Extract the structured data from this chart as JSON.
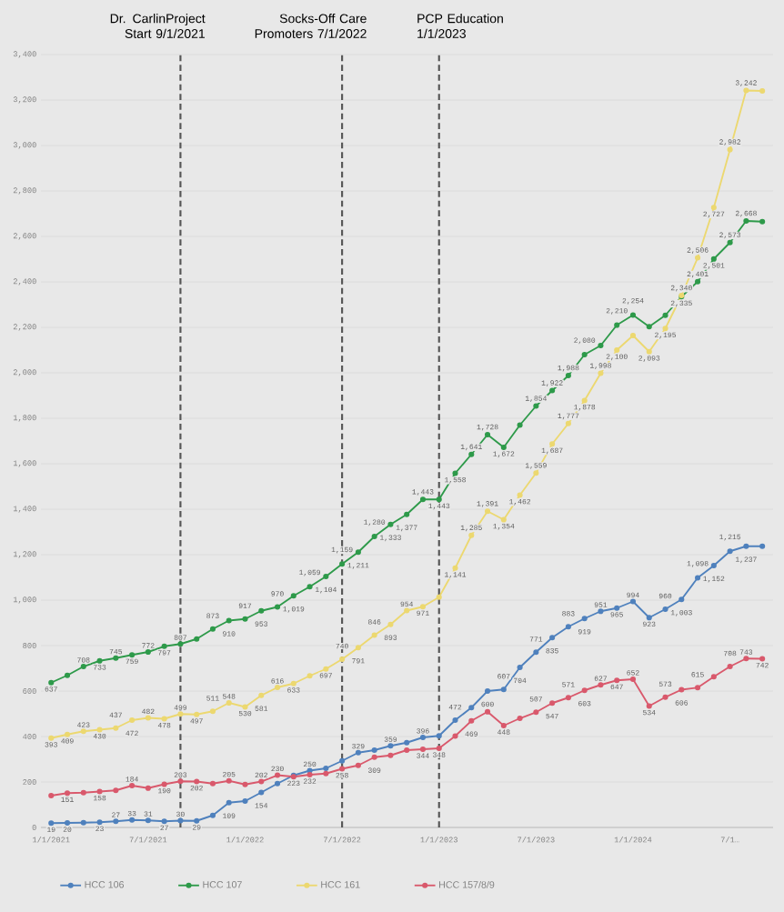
{
  "chart_data": {
    "type": "line",
    "x": [
      "2021-01",
      "2021-02",
      "2021-03",
      "2021-04",
      "2021-05",
      "2021-06",
      "2021-07",
      "2021-08",
      "2021-09",
      "2021-10",
      "2021-11",
      "2021-12",
      "2022-01",
      "2022-02",
      "2022-03",
      "2022-04",
      "2022-05",
      "2022-06",
      "2022-07",
      "2022-08",
      "2022-09",
      "2022-10",
      "2022-11",
      "2022-12",
      "2023-01",
      "2023-02",
      "2023-03",
      "2023-04",
      "2023-05",
      "2023-06",
      "2023-07",
      "2023-08",
      "2023-09",
      "2023-10",
      "2023-11",
      "2023-12",
      "2024-01",
      "2024-02",
      "2024-03",
      "2024-04",
      "2024-05",
      "2024-06",
      "2024-07",
      "2024-08",
      "2024-09"
    ],
    "series": [
      {
        "name": "HCC 106",
        "color": "#4f81bd",
        "values": [
          19,
          20,
          21,
          23,
          27,
          33,
          31,
          27,
          30,
          29,
          53,
          109,
          116,
          154,
          193,
          229,
          250,
          260,
          293,
          329,
          340,
          359,
          373,
          396,
          403,
          472,
          527,
          600,
          607,
          704,
          771,
          835,
          883,
          919,
          951,
          965,
          994,
          923,
          960,
          1003,
          1098,
          1152,
          1215,
          1237,
          1237
        ],
        "value_labels": [
          "19",
          "20",
          null,
          "23",
          "27",
          "33",
          "31",
          "27",
          "30",
          "29",
          null,
          "109",
          null,
          "154",
          null,
          null,
          "250",
          null,
          null,
          "329",
          null,
          "359",
          null,
          "396",
          null,
          "472",
          null,
          "600",
          "607",
          "704",
          "771",
          "835",
          "883",
          "919",
          "951",
          "965",
          "994",
          "923",
          "960",
          "1,003",
          "1,098",
          "1,152",
          "1,215",
          "1,237",
          null
        ]
      },
      {
        "name": "HCC 107",
        "color": "#2e9a4a",
        "values": [
          637,
          669,
          708,
          733,
          745,
          759,
          772,
          797,
          807,
          829,
          873,
          910,
          917,
          953,
          970,
          1019,
          1059,
          1104,
          1159,
          1211,
          1280,
          1333,
          1377,
          1443,
          1443,
          1558,
          1641,
          1728,
          1672,
          1770,
          1854,
          1922,
          1988,
          2080,
          2120,
          2210,
          2254,
          2203,
          2253,
          2335,
          2401,
          2501,
          2573,
          2668,
          2665
        ],
        "value_labels": [
          "637",
          null,
          "708",
          "733",
          "745",
          "759",
          "772",
          "797",
          "807",
          null,
          "873",
          "910",
          "917",
          "953",
          "970",
          "1,019",
          "1,059",
          "1,104",
          "1,159",
          "1,211",
          "1,280",
          "1,333",
          "1,377",
          "1,443",
          "1,443",
          "1,558",
          "1,641",
          "1,728",
          "1,672",
          null,
          "1,854",
          "1,922",
          "1,988",
          "2,080",
          null,
          "2,210",
          "2,254",
          null,
          null,
          "2,335",
          "2,401",
          "2,501",
          "2,573",
          "2,668",
          null
        ]
      },
      {
        "name": "HCC 161",
        "color": "#ecd870",
        "values": [
          393,
          409,
          423,
          430,
          437,
          472,
          482,
          478,
          499,
          497,
          511,
          548,
          530,
          581,
          616,
          633,
          667,
          697,
          740,
          791,
          846,
          893,
          954,
          971,
          1013,
          1141,
          1285,
          1391,
          1354,
          1462,
          1559,
          1687,
          1777,
          1878,
          1998,
          2100,
          2164,
          2093,
          2195,
          2340,
          2506,
          2727,
          2982,
          3242,
          3240
        ],
        "value_labels": [
          "393",
          "409",
          "423",
          "430",
          "437",
          "472",
          "482",
          "478",
          "499",
          "497",
          "511",
          "548",
          "530",
          "581",
          "616",
          "633",
          null,
          "697",
          "740",
          "791",
          "846",
          "893",
          "954",
          "971",
          null,
          "1,141",
          "1,285",
          "1,391",
          "1,354",
          "1,462",
          "1,559",
          "1,687",
          "1,777",
          "1,878",
          "1,998",
          "2,100",
          null,
          "2,093",
          "2,195",
          "2,340",
          "2,506",
          "2,727",
          "2,982",
          "3,242",
          null
        ]
      },
      {
        "name": "HCC 157/8/9",
        "color": "#d9596c",
        "values": [
          140,
          151,
          153,
          158,
          163,
          184,
          173,
          190,
          203,
          202,
          193,
          205,
          189,
          202,
          230,
          223,
          232,
          237,
          258,
          273,
          309,
          317,
          340,
          344,
          348,
          402,
          469,
          509,
          448,
          480,
          507,
          547,
          571,
          603,
          627,
          647,
          652,
          534,
          573,
          606,
          615,
          663,
          708,
          743,
          742
        ],
        "value_labels": [
          null,
          "151",
          null,
          "158",
          null,
          "184",
          null,
          "190",
          "203",
          "202",
          null,
          "205",
          null,
          "202",
          "230",
          "223",
          "232",
          null,
          "258",
          null,
          "309",
          null,
          null,
          "344",
          "348",
          null,
          "469",
          null,
          "448",
          null,
          "507",
          "547",
          "571",
          "603",
          "627",
          "647",
          "652",
          "534",
          "573",
          "606",
          "615",
          null,
          "708",
          "743",
          "742"
        ]
      }
    ],
    "xlim": [
      "2020-12-12",
      "2024-09-21"
    ],
    "xticks": [
      {
        "value": "2021-01",
        "label": "1/1/2021"
      },
      {
        "value": "2021-07",
        "label": "7/1/2021"
      },
      {
        "value": "2022-01",
        "label": "1/1/2022"
      },
      {
        "value": "2022-07",
        "label": "7/1/2022"
      },
      {
        "value": "2023-01",
        "label": "1/1/2023"
      },
      {
        "value": "2023-07",
        "label": "7/1/2023"
      },
      {
        "value": "2024-01",
        "label": "1/1/2024"
      },
      {
        "value": "2024-07",
        "label": "7/1…"
      }
    ],
    "ylim": [
      0,
      3400
    ],
    "yticks": [
      0,
      200,
      400,
      600,
      800,
      {
        "value": 1000,
        "label": "1,000"
      },
      {
        "value": 1200,
        "label": "1,200"
      },
      {
        "value": 1400,
        "label": "1,400"
      },
      {
        "value": 1600,
        "label": "1,600"
      },
      {
        "value": 1800,
        "label": "1,800"
      },
      {
        "value": 2000,
        "label": "2,000"
      },
      {
        "value": 2200,
        "label": "2,200"
      },
      {
        "value": 2400,
        "label": "2,400"
      },
      {
        "value": 2600,
        "label": "2,600"
      },
      {
        "value": 2800,
        "label": "2,800"
      },
      {
        "value": 3000,
        "label": "3,000"
      },
      {
        "value": 3200,
        "label": "3,200"
      },
      {
        "value": 3400,
        "label": "3,400"
      }
    ],
    "ref_lines": [
      {
        "axis": "x",
        "value": "2021-09-01",
        "label": "Dr. CarlinProject Start 9/1/2021",
        "color": "#555555",
        "line_style": "dashed"
      },
      {
        "axis": "x",
        "value": "2022-07-01",
        "label": "Socks-Off Care Promoters 7/1/2022",
        "color": "#555555",
        "line_style": "dashed"
      },
      {
        "axis": "x",
        "value": "2023-01-01",
        "label": "PCP Education 1/1/2023",
        "color": "#555555",
        "line_style": "dashed"
      }
    ],
    "grid": "y",
    "legend": "bottom",
    "marker": "circle",
    "line_style": "solid"
  }
}
